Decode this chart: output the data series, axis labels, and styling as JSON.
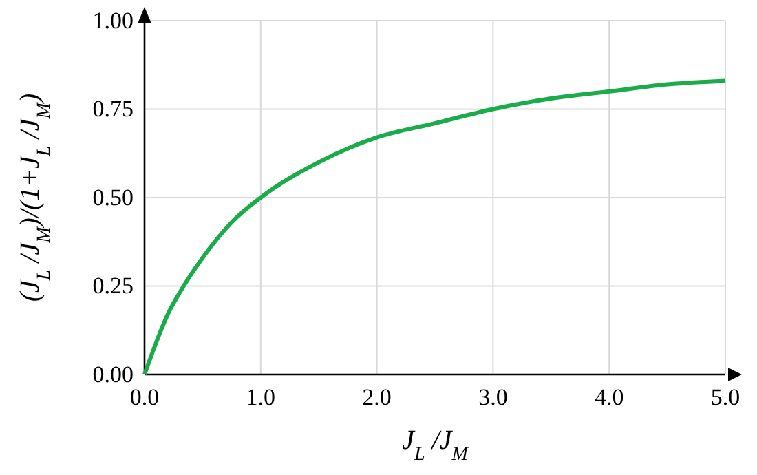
{
  "chart_data": {
    "type": "line",
    "xlabel": "J$_{L}$ /J$_{M}$",
    "ylabel": "(J$_{L}$ /J$_{M}$)/(1+J$_{L}$ /J$_{M}$)",
    "x": [
      0,
      0.1,
      0.2,
      0.3,
      0.5,
      0.75,
      1,
      1.5,
      2,
      2.5,
      3,
      3.5,
      4,
      4.5,
      5
    ],
    "series": [
      {
        "color": "#1aab4b",
        "values": [
          0,
          0.09,
          0.17,
          0.23,
          0.33,
          0.43,
          0.5,
          0.6,
          0.67,
          0.71,
          0.75,
          0.78,
          0.8,
          0.82,
          0.83
        ]
      }
    ],
    "xlim": [
      0,
      5
    ],
    "ylim": [
      0,
      1
    ],
    "xticks": [
      {
        "value": 0,
        "label": "0.0"
      },
      {
        "value": 1,
        "label": "1.0"
      },
      {
        "value": 2,
        "label": "2.0"
      },
      {
        "value": 3,
        "label": "3.0"
      },
      {
        "value": 4,
        "label": "4.0"
      },
      {
        "value": 5,
        "label": "5.0"
      }
    ],
    "yticks": [
      {
        "value": 0,
        "label": "0.00"
      },
      {
        "value": 0.25,
        "label": "0.25"
      },
      {
        "value": 0.5,
        "label": "0.50"
      },
      {
        "value": 0.75,
        "label": "0.75"
      },
      {
        "value": 1,
        "label": "1.00"
      }
    ],
    "grid": true,
    "marker": "none",
    "line_style": "solid"
  }
}
